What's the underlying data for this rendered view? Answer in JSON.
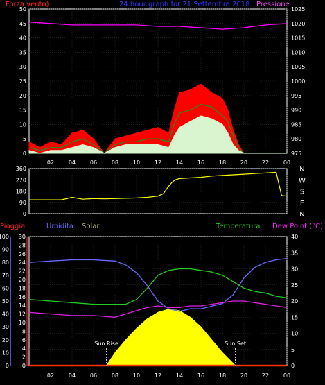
{
  "chart_data": [
    {
      "type": "line",
      "title": "24 hour graph for  21 Settembre 2018",
      "left_label": "Forza vento)",
      "right_label": "Pressione",
      "x_ticks": [
        "02",
        "04",
        "06",
        "08",
        "10",
        "12",
        "14",
        "16",
        "18",
        "20",
        "22",
        "00"
      ],
      "x_range": [
        0,
        24
      ],
      "left_ticks": [
        "50",
        "45",
        "40",
        "35",
        "30",
        "25",
        "20",
        "15",
        "10",
        "5",
        "0"
      ],
      "left_range": [
        0,
        50
      ],
      "right_ticks": [
        "1025",
        "1020",
        "1015",
        "1010",
        "1005",
        "1000",
        "995",
        "990",
        "985",
        "980",
        "975"
      ],
      "right_range": [
        975,
        1025
      ],
      "grid": true,
      "series": [
        {
          "color": "#ff0000",
          "axis": "left",
          "kind": "area",
          "x": [
            0,
            1,
            2,
            3,
            4,
            5,
            6,
            7,
            8,
            9,
            10,
            11,
            12,
            13,
            13.5,
            14,
            15,
            16,
            17,
            18,
            18.5,
            19,
            19.5,
            20,
            21,
            22,
            23,
            24
          ],
          "y": [
            4,
            2,
            4,
            3,
            7,
            8,
            5,
            0,
            5,
            6,
            7,
            8,
            9,
            7,
            15,
            21,
            22,
            24,
            21,
            19,
            15,
            8,
            3,
            0,
            0,
            0,
            0,
            0
          ]
        },
        {
          "color": "#228b22",
          "axis": "left",
          "kind": "line",
          "x": [
            0,
            1,
            2,
            3,
            4,
            5,
            6,
            7,
            8,
            9,
            10,
            11,
            12,
            13,
            13.5,
            14,
            15,
            16,
            17,
            18,
            18.5,
            19,
            19.5,
            20,
            21,
            22,
            23,
            24
          ],
          "y": [
            2,
            1,
            2,
            2,
            4,
            5,
            3,
            0,
            3,
            4,
            4,
            5,
            5,
            4,
            10,
            14,
            15,
            17,
            16,
            13,
            11,
            6,
            2,
            0,
            0,
            0,
            0,
            0
          ]
        },
        {
          "color": "#d8f5d0",
          "axis": "left",
          "kind": "area",
          "x": [
            0,
            1,
            2,
            3,
            4,
            5,
            6,
            7,
            8,
            9,
            10,
            11,
            12,
            13,
            13.5,
            14,
            15,
            16,
            17,
            18,
            18.5,
            19,
            19.5,
            20,
            21,
            22,
            23,
            24
          ],
          "y": [
            1,
            0,
            1,
            1,
            2,
            3,
            2,
            0,
            2,
            3,
            3,
            3,
            3,
            2,
            6,
            9,
            11,
            13,
            12,
            10,
            7,
            3,
            1,
            0,
            0,
            0,
            0,
            0
          ]
        },
        {
          "color": "#ff00ff",
          "axis": "right",
          "kind": "line",
          "x": [
            0,
            2,
            4,
            6,
            8,
            10,
            12,
            14,
            16,
            18,
            20,
            22,
            24
          ],
          "y": [
            1020.5,
            1020,
            1019.5,
            1019.5,
            1019.5,
            1019.5,
            1019,
            1019,
            1018.5,
            1018,
            1018.5,
            1019.5,
            1020
          ]
        }
      ]
    },
    {
      "type": "line",
      "left_ticks": [
        "360",
        "270",
        "180",
        "90",
        "0"
      ],
      "left_range": [
        0,
        360
      ],
      "right_labels": [
        "N",
        "W",
        "S",
        "E",
        "N"
      ],
      "x_range": [
        0,
        24
      ],
      "series": [
        {
          "name": "direction",
          "color": "#ffff00",
          "x": [
            0,
            3,
            4,
            5,
            6,
            7,
            8,
            10,
            11,
            12,
            12.5,
            13,
            13.3,
            13.6,
            14,
            15,
            16,
            17,
            18,
            19,
            20,
            21,
            22,
            23,
            23.5,
            24
          ],
          "y": [
            110,
            110,
            130,
            115,
            120,
            118,
            120,
            125,
            130,
            140,
            160,
            220,
            250,
            270,
            280,
            285,
            290,
            300,
            305,
            310,
            315,
            320,
            325,
            330,
            145,
            140
          ]
        }
      ]
    },
    {
      "type": "line",
      "labels": {
        "rain": "Pioggia",
        "humidity": "Umidita",
        "solar": "Solar",
        "temperature": "Temperatura",
        "dewpoint": "Dew Point (°C)"
      },
      "sun_rise_label": "Sun Rise",
      "sun_set_label": "Sun Set",
      "sun_rise_hour": 7.2,
      "sun_set_hour": 19.2,
      "x_ticks": [
        "02",
        "04",
        "06",
        "08",
        "10",
        "12",
        "14",
        "16",
        "18",
        "20",
        "22",
        "00"
      ],
      "x_range": [
        0,
        24
      ],
      "rain_ticks": [
        "30",
        "28",
        "26",
        "24",
        "22",
        "20",
        "18",
        "16",
        "14",
        "12",
        "10",
        "8",
        "6",
        "4",
        "2",
        "0"
      ],
      "rain_range": [
        0,
        30
      ],
      "humidity_ticks": [
        "100",
        "90",
        "80",
        "70",
        "60",
        "50",
        "40",
        "30",
        "20",
        "10",
        "0"
      ],
      "humidity_range": [
        0,
        100
      ],
      "temp_ticks": [
        "40",
        "35",
        "30",
        "25",
        "20",
        "15",
        "10",
        "5",
        "0"
      ],
      "temp_range": [
        0,
        40
      ],
      "grid": true,
      "series": [
        {
          "name": "Umidita",
          "color": "#6a6aff",
          "axis": "humidity",
          "x": [
            0,
            2,
            4,
            6,
            8,
            9,
            10,
            11,
            12,
            13,
            14,
            15,
            16,
            17,
            18,
            19,
            20,
            21,
            22,
            23,
            24
          ],
          "y": [
            80,
            81,
            82,
            82,
            81,
            78,
            72,
            62,
            50,
            44,
            42,
            44,
            44,
            46,
            48,
            55,
            68,
            76,
            80,
            82,
            83
          ]
        },
        {
          "name": "Temperatura",
          "color": "#22cc22",
          "axis": "temp",
          "x": [
            0,
            2,
            4,
            6,
            8,
            9,
            10,
            11,
            12,
            13,
            14,
            15,
            16,
            17,
            18,
            19,
            20,
            21,
            22,
            23,
            24
          ],
          "y": [
            20.5,
            20,
            19.5,
            19,
            19,
            19,
            20.5,
            24,
            28,
            29.5,
            30,
            30,
            29.5,
            29,
            28,
            26,
            24,
            23,
            22.5,
            21.5,
            21
          ]
        },
        {
          "name": "Dew Point",
          "color": "#dd22dd",
          "axis": "temp",
          "x": [
            0,
            2,
            4,
            6,
            8,
            9,
            10,
            11,
            12,
            13,
            14,
            15,
            16,
            17,
            18,
            19,
            20,
            21,
            22,
            23,
            24
          ],
          "y": [
            16.5,
            16,
            15.5,
            15.5,
            15,
            16,
            17,
            18,
            18.5,
            18,
            18,
            18.5,
            18.5,
            19,
            19.5,
            20,
            20,
            19.5,
            19,
            18.5,
            18
          ]
        },
        {
          "name": "Solar",
          "color": "#ffff00",
          "axis": "temp",
          "kind": "area",
          "x": [
            7.2,
            8,
            9,
            10,
            11,
            12,
            13,
            14,
            15,
            16,
            17,
            18,
            19.2
          ],
          "y": [
            0,
            4,
            8,
            11.5,
            14.5,
            16.5,
            17.5,
            17,
            15,
            12,
            8,
            4,
            0
          ]
        },
        {
          "name": "Pioggia",
          "color": "#ff3300",
          "axis": "rain",
          "x": [
            0,
            24
          ],
          "y": [
            0,
            0
          ]
        }
      ]
    }
  ]
}
